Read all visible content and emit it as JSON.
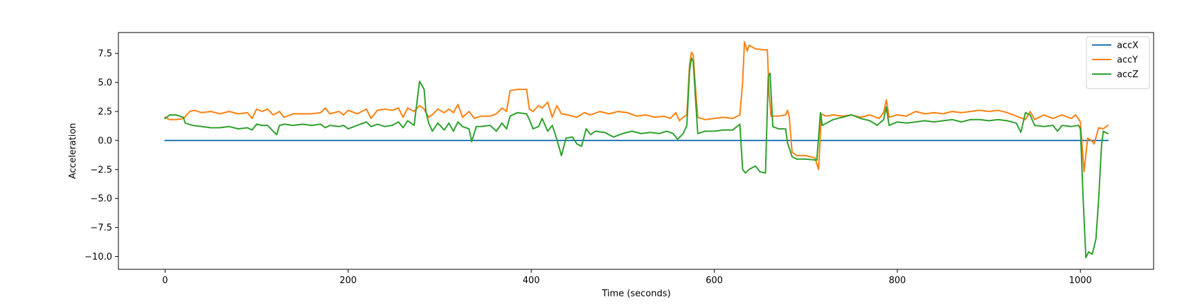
{
  "chart_data": {
    "type": "line",
    "title": "",
    "xlabel": "Time (seconds)",
    "ylabel": "Acceleration",
    "xlim": [
      -51,
      1080
    ],
    "ylim": [
      -11.1,
      9.3
    ],
    "xticks": [
      0,
      200,
      400,
      600,
      800,
      1000
    ],
    "xtick_labels": [
      "0",
      "200",
      "400",
      "600",
      "800",
      "1000"
    ],
    "yticks": [
      -10.0,
      -7.5,
      -5.0,
      -2.5,
      0.0,
      2.5,
      5.0,
      7.5
    ],
    "ytick_labels": [
      "−10.0",
      "−7.5",
      "−5.0",
      "−2.5",
      "0.0",
      "2.5",
      "5.0",
      "7.5"
    ],
    "grid": false,
    "legend": "top-right",
    "series": [
      {
        "name": "accX",
        "color": "#1f77b4",
        "points": [
          [
            0,
            0
          ],
          [
            1030,
            0
          ]
        ]
      },
      {
        "name": "accY",
        "color": "#ff7f0e",
        "points": [
          [
            0,
            2.0
          ],
          [
            5,
            1.8
          ],
          [
            12,
            1.8
          ],
          [
            20,
            1.9
          ],
          [
            27,
            2.5
          ],
          [
            32,
            2.6
          ],
          [
            40,
            2.4
          ],
          [
            50,
            2.5
          ],
          [
            60,
            2.3
          ],
          [
            70,
            2.5
          ],
          [
            80,
            2.3
          ],
          [
            90,
            2.4
          ],
          [
            95,
            1.9
          ],
          [
            100,
            2.7
          ],
          [
            106,
            2.5
          ],
          [
            112,
            2.7
          ],
          [
            118,
            2.2
          ],
          [
            125,
            2.5
          ],
          [
            130,
            2.0
          ],
          [
            140,
            2.3
          ],
          [
            150,
            2.3
          ],
          [
            160,
            2.3
          ],
          [
            170,
            2.4
          ],
          [
            175,
            2.8
          ],
          [
            180,
            2.3
          ],
          [
            190,
            2.5
          ],
          [
            195,
            2.2
          ],
          [
            200,
            2.6
          ],
          [
            210,
            2.3
          ],
          [
            220,
            2.7
          ],
          [
            225,
            1.9
          ],
          [
            232,
            2.6
          ],
          [
            240,
            2.7
          ],
          [
            248,
            2.6
          ],
          [
            255,
            2.8
          ],
          [
            260,
            2.0
          ],
          [
            265,
            2.8
          ],
          [
            272,
            2.5
          ],
          [
            278,
            3.0
          ],
          [
            283,
            2.7
          ],
          [
            288,
            2.0
          ],
          [
            293,
            2.3
          ],
          [
            298,
            2.7
          ],
          [
            305,
            2.4
          ],
          [
            310,
            2.7
          ],
          [
            315,
            2.4
          ],
          [
            320,
            3.1
          ],
          [
            325,
            2.0
          ],
          [
            332,
            2.5
          ],
          [
            338,
            1.9
          ],
          [
            345,
            2.1
          ],
          [
            355,
            2.1
          ],
          [
            362,
            2.3
          ],
          [
            368,
            2.8
          ],
          [
            373,
            2.5
          ],
          [
            377,
            4.3
          ],
          [
            385,
            4.4
          ],
          [
            395,
            4.4
          ],
          [
            398,
            2.7
          ],
          [
            402,
            2.5
          ],
          [
            408,
            3.0
          ],
          [
            412,
            2.8
          ],
          [
            418,
            3.3
          ],
          [
            423,
            2.0
          ],
          [
            428,
            3.0
          ],
          [
            433,
            2.3
          ],
          [
            440,
            2.2
          ],
          [
            450,
            2.0
          ],
          [
            458,
            2.4
          ],
          [
            465,
            2.2
          ],
          [
            475,
            2.5
          ],
          [
            485,
            2.3
          ],
          [
            495,
            2.5
          ],
          [
            505,
            2.4
          ],
          [
            515,
            2.1
          ],
          [
            525,
            2.2
          ],
          [
            535,
            2.0
          ],
          [
            545,
            2.1
          ],
          [
            552,
            1.9
          ],
          [
            558,
            2.4
          ],
          [
            562,
            1.7
          ],
          [
            566,
            2.0
          ],
          [
            570,
            2.2
          ],
          [
            573,
            6.5
          ],
          [
            575,
            7.6
          ],
          [
            577,
            7.4
          ],
          [
            580,
            4.0
          ],
          [
            582,
            2.0
          ],
          [
            590,
            1.8
          ],
          [
            600,
            1.9
          ],
          [
            610,
            2.0
          ],
          [
            620,
            1.9
          ],
          [
            628,
            2.2
          ],
          [
            631,
            5.0
          ],
          [
            633,
            8.5
          ],
          [
            636,
            7.7
          ],
          [
            638,
            8.2
          ],
          [
            645,
            7.9
          ],
          [
            655,
            7.8
          ],
          [
            658,
            7.8
          ],
          [
            660,
            4.0
          ],
          [
            662,
            2.1
          ],
          [
            670,
            2.1
          ],
          [
            678,
            2.2
          ],
          [
            680,
            2.6
          ],
          [
            682,
            2.0
          ],
          [
            685,
            -1.0
          ],
          [
            690,
            -1.3
          ],
          [
            700,
            -1.3
          ],
          [
            710,
            -1.5
          ],
          [
            714,
            -2.5
          ],
          [
            717,
            2.3
          ],
          [
            722,
            2.1
          ],
          [
            730,
            2.2
          ],
          [
            740,
            2.1
          ],
          [
            750,
            2.2
          ],
          [
            760,
            2.0
          ],
          [
            770,
            2.2
          ],
          [
            780,
            1.9
          ],
          [
            785,
            2.4
          ],
          [
            788,
            3.5
          ],
          [
            791,
            2.0
          ],
          [
            800,
            2.2
          ],
          [
            810,
            2.1
          ],
          [
            820,
            2.5
          ],
          [
            830,
            2.3
          ],
          [
            840,
            2.4
          ],
          [
            850,
            2.3
          ],
          [
            860,
            2.5
          ],
          [
            870,
            2.4
          ],
          [
            880,
            2.5
          ],
          [
            890,
            2.6
          ],
          [
            900,
            2.5
          ],
          [
            910,
            2.6
          ],
          [
            920,
            2.4
          ],
          [
            930,
            2.1
          ],
          [
            940,
            1.8
          ],
          [
            945,
            2.5
          ],
          [
            950,
            1.8
          ],
          [
            960,
            2.2
          ],
          [
            970,
            1.9
          ],
          [
            980,
            2.2
          ],
          [
            990,
            1.9
          ],
          [
            995,
            2.2
          ],
          [
            1000,
            1.6
          ],
          [
            1004,
            -2.7
          ],
          [
            1008,
            0.2
          ],
          [
            1012,
            0.0
          ],
          [
            1015,
            -0.3
          ],
          [
            1020,
            1.1
          ],
          [
            1025,
            1.0
          ],
          [
            1030,
            1.3
          ]
        ]
      },
      {
        "name": "accZ",
        "color": "#2ca02c",
        "points": [
          [
            0,
            1.9
          ],
          [
            5,
            2.2
          ],
          [
            12,
            2.2
          ],
          [
            20,
            2.0
          ],
          [
            22,
            1.5
          ],
          [
            30,
            1.3
          ],
          [
            40,
            1.2
          ],
          [
            50,
            1.1
          ],
          [
            60,
            1.1
          ],
          [
            70,
            1.2
          ],
          [
            80,
            1.0
          ],
          [
            90,
            1.1
          ],
          [
            95,
            0.9
          ],
          [
            100,
            1.4
          ],
          [
            106,
            1.3
          ],
          [
            112,
            1.3
          ],
          [
            118,
            0.8
          ],
          [
            122,
            0.5
          ],
          [
            125,
            1.3
          ],
          [
            130,
            1.4
          ],
          [
            140,
            1.3
          ],
          [
            150,
            1.4
          ],
          [
            160,
            1.3
          ],
          [
            170,
            1.4
          ],
          [
            175,
            1.1
          ],
          [
            180,
            1.3
          ],
          [
            190,
            1.2
          ],
          [
            195,
            1.3
          ],
          [
            200,
            1.0
          ],
          [
            210,
            1.3
          ],
          [
            220,
            1.6
          ],
          [
            225,
            1.2
          ],
          [
            232,
            1.4
          ],
          [
            240,
            1.2
          ],
          [
            248,
            1.3
          ],
          [
            255,
            1.6
          ],
          [
            260,
            1.1
          ],
          [
            265,
            1.7
          ],
          [
            272,
            1.3
          ],
          [
            278,
            5.1
          ],
          [
            283,
            4.4
          ],
          [
            285,
            2.5
          ],
          [
            288,
            1.5
          ],
          [
            292,
            0.8
          ],
          [
            298,
            1.5
          ],
          [
            305,
            0.9
          ],
          [
            310,
            1.5
          ],
          [
            315,
            0.8
          ],
          [
            320,
            1.6
          ],
          [
            325,
            1.2
          ],
          [
            332,
            1.0
          ],
          [
            335,
            -0.1
          ],
          [
            340,
            1.2
          ],
          [
            345,
            1.2
          ],
          [
            355,
            1.3
          ],
          [
            362,
            0.8
          ],
          [
            368,
            1.5
          ],
          [
            373,
            1.0
          ],
          [
            377,
            2.1
          ],
          [
            385,
            2.4
          ],
          [
            395,
            2.3
          ],
          [
            398,
            1.8
          ],
          [
            402,
            1.0
          ],
          [
            408,
            1.2
          ],
          [
            412,
            1.9
          ],
          [
            418,
            0.8
          ],
          [
            423,
            1.3
          ],
          [
            428,
            0.1
          ],
          [
            433,
            -1.3
          ],
          [
            438,
            0.2
          ],
          [
            445,
            0.3
          ],
          [
            450,
            -0.3
          ],
          [
            455,
            -0.5
          ],
          [
            460,
            1.0
          ],
          [
            465,
            0.5
          ],
          [
            470,
            0.8
          ],
          [
            480,
            0.7
          ],
          [
            490,
            0.3
          ],
          [
            500,
            0.6
          ],
          [
            510,
            0.8
          ],
          [
            520,
            0.6
          ],
          [
            530,
            0.7
          ],
          [
            540,
            0.6
          ],
          [
            548,
            0.8
          ],
          [
            555,
            0.6
          ],
          [
            560,
            0.1
          ],
          [
            566,
            0.6
          ],
          [
            570,
            1.3
          ],
          [
            573,
            6.0
          ],
          [
            575,
            7.1
          ],
          [
            577,
            6.8
          ],
          [
            580,
            3.0
          ],
          [
            582,
            0.6
          ],
          [
            590,
            0.8
          ],
          [
            600,
            0.8
          ],
          [
            610,
            0.9
          ],
          [
            620,
            0.9
          ],
          [
            628,
            1.4
          ],
          [
            631,
            -2.5
          ],
          [
            634,
            -2.8
          ],
          [
            638,
            -2.5
          ],
          [
            645,
            -2.2
          ],
          [
            650,
            -2.7
          ],
          [
            656,
            -2.8
          ],
          [
            659,
            5.5
          ],
          [
            661,
            5.8
          ],
          [
            664,
            1.2
          ],
          [
            670,
            1.0
          ],
          [
            678,
            1.0
          ],
          [
            680,
            -0.2
          ],
          [
            685,
            -1.4
          ],
          [
            690,
            -1.6
          ],
          [
            700,
            -1.6
          ],
          [
            712,
            -1.7
          ],
          [
            716,
            2.4
          ],
          [
            718,
            1.3
          ],
          [
            725,
            1.6
          ],
          [
            730,
            1.8
          ],
          [
            740,
            2.0
          ],
          [
            750,
            2.2
          ],
          [
            760,
            1.9
          ],
          [
            770,
            1.7
          ],
          [
            778,
            1.3
          ],
          [
            785,
            1.8
          ],
          [
            788,
            2.9
          ],
          [
            791,
            1.3
          ],
          [
            800,
            1.6
          ],
          [
            810,
            1.5
          ],
          [
            820,
            1.6
          ],
          [
            830,
            1.7
          ],
          [
            840,
            1.6
          ],
          [
            850,
            1.7
          ],
          [
            860,
            1.8
          ],
          [
            870,
            1.6
          ],
          [
            880,
            1.8
          ],
          [
            890,
            1.8
          ],
          [
            900,
            1.7
          ],
          [
            910,
            1.8
          ],
          [
            920,
            1.7
          ],
          [
            930,
            1.5
          ],
          [
            935,
            0.7
          ],
          [
            940,
            2.4
          ],
          [
            945,
            2.2
          ],
          [
            950,
            1.3
          ],
          [
            960,
            1.2
          ],
          [
            970,
            1.3
          ],
          [
            975,
            0.8
          ],
          [
            980,
            1.3
          ],
          [
            990,
            1.2
          ],
          [
            998,
            1.3
          ],
          [
            1000,
            1.0
          ],
          [
            1003,
            -5.0
          ],
          [
            1006,
            -10.1
          ],
          [
            1009,
            -9.6
          ],
          [
            1013,
            -9.8
          ],
          [
            1017,
            -8.5
          ],
          [
            1020,
            -5.0
          ],
          [
            1023,
            -0.5
          ],
          [
            1025,
            0.8
          ],
          [
            1030,
            0.6
          ]
        ]
      }
    ]
  }
}
